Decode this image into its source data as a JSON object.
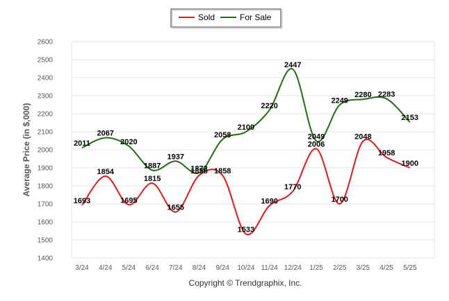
{
  "chart_data": {
    "type": "line",
    "title": "",
    "xlabel": "",
    "ylabel": "Average Price (in $,000)",
    "ylim": [
      1400,
      2600
    ],
    "yticks": [
      1400,
      1500,
      1600,
      1700,
      1800,
      1900,
      2000,
      2100,
      2200,
      2300,
      2400,
      2500,
      2600
    ],
    "grid": true,
    "legend_position": "top-center",
    "categories": [
      "3/24",
      "4/24",
      "5/24",
      "6/24",
      "7/24",
      "8/24",
      "9/24",
      "10/24",
      "11/24",
      "12/24",
      "1/25",
      "2/25",
      "3/25",
      "4/25",
      "5/25"
    ],
    "series": [
      {
        "name": "Sold",
        "color": "#e8151b",
        "values": [
          1693,
          1854,
          1695,
          1815,
          1655,
          1858,
          1858,
          1533,
          1690,
          1770,
          2006,
          1700,
          2048,
          1958,
          1900
        ]
      },
      {
        "name": "For Sale",
        "color": "#1e6e0e",
        "values": [
          2011,
          2067,
          2020,
          1887,
          1937,
          1872,
          2058,
          2100,
          2220,
          2447,
          2049,
          2249,
          2280,
          2283,
          2153
        ]
      }
    ]
  },
  "footer": {
    "copyright": "Copyright © Trendgraphix, Inc."
  }
}
